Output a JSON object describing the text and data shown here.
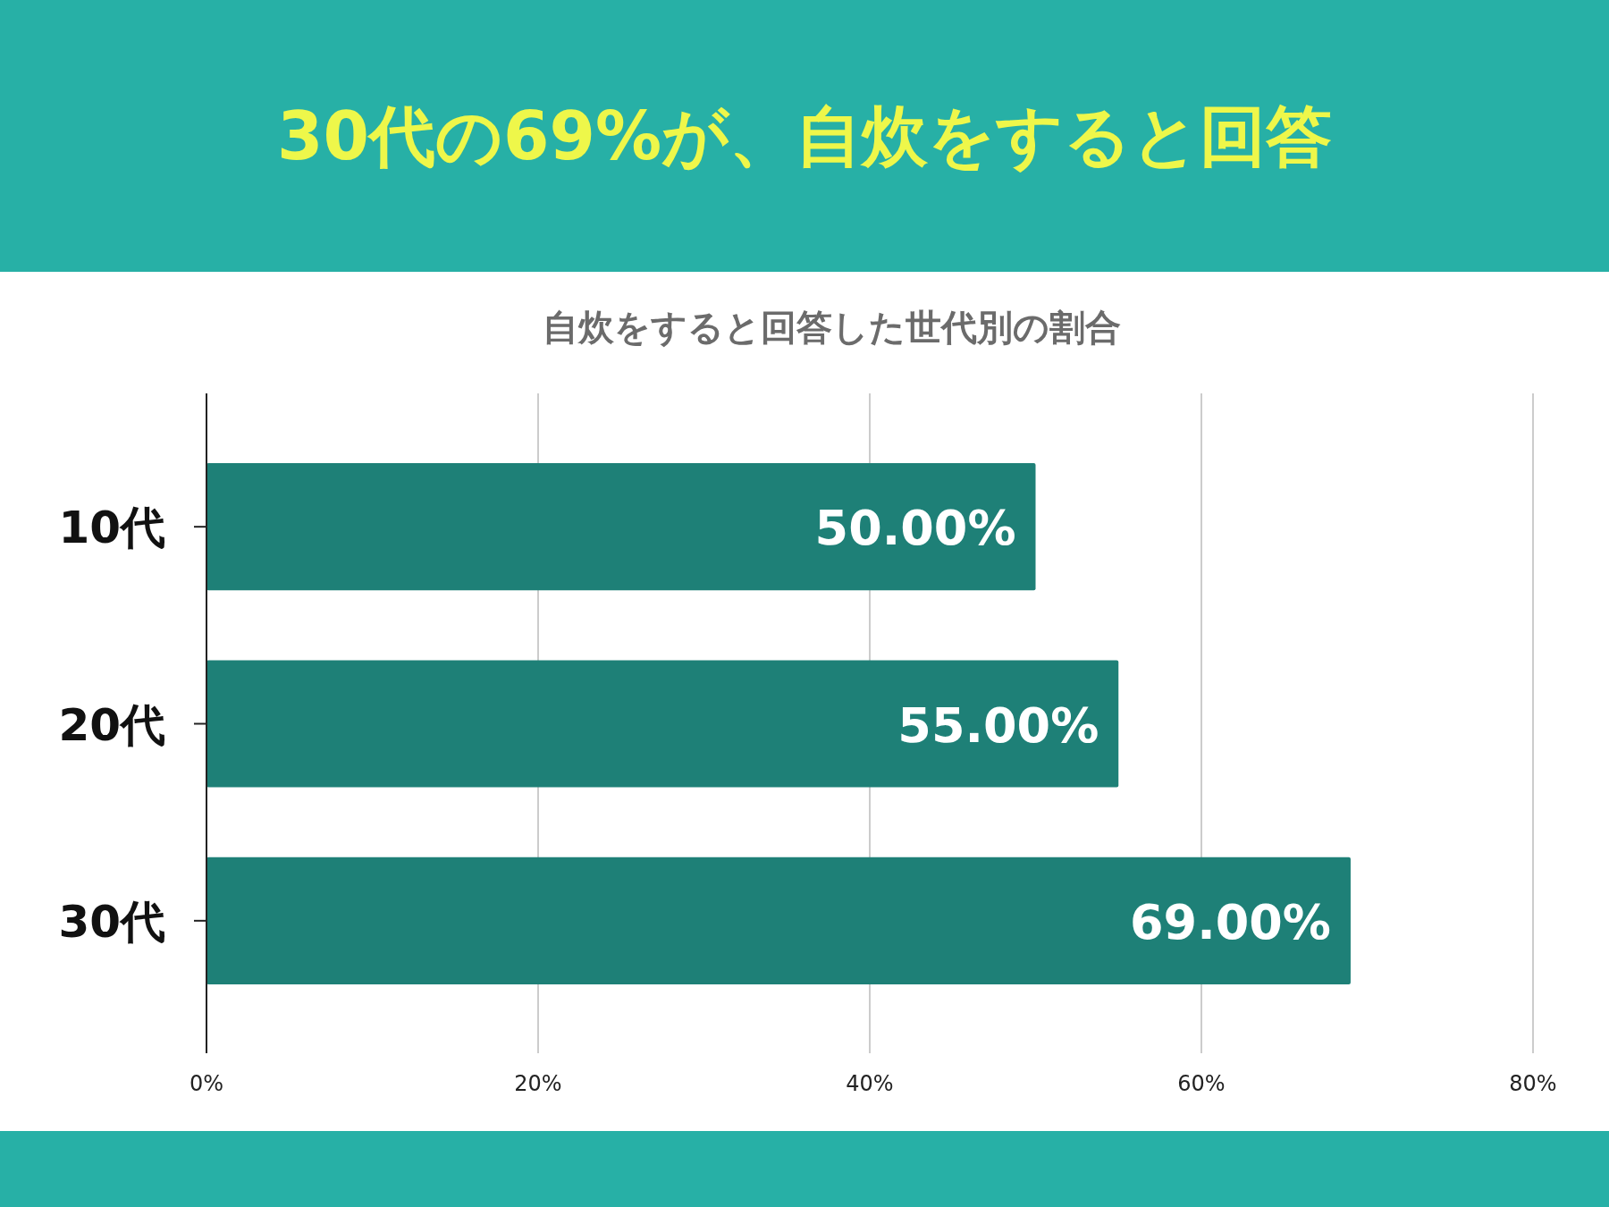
{
  "chart_data": {
    "type": "bar",
    "orientation": "horizontal",
    "title": "30代の69%が、自炊をすると回答",
    "subtitle": "自炊をすると回答した世代別の割合",
    "categories": [
      "10代",
      "20代",
      "30代"
    ],
    "values": [
      50,
      55,
      69
    ],
    "value_labels": [
      "50.00%",
      "55.00%",
      "69.00%"
    ],
    "color": "#1e8077",
    "xlim": [
      0,
      80
    ],
    "xticks": [
      {
        "value": 0,
        "label": "0%"
      },
      {
        "value": 20,
        "label": "20%"
      },
      {
        "value": 40,
        "label": "40%"
      },
      {
        "value": 60,
        "label": "60%"
      },
      {
        "value": 80,
        "label": "80%"
      }
    ],
    "grid": "x"
  }
}
